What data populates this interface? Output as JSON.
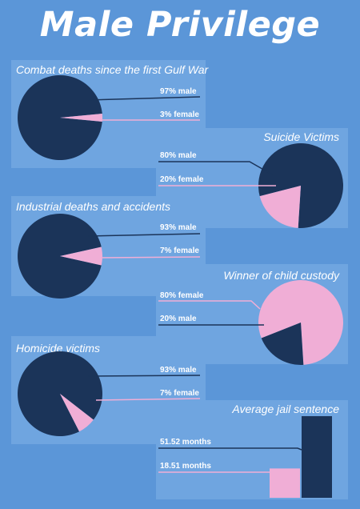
{
  "title": "Male Privilege",
  "colors": {
    "male": "#1b3459",
    "female": "#f0aed6",
    "background": "#5b96d8",
    "panel": "#6fa5e0"
  },
  "chart_data": [
    {
      "type": "pie",
      "title": "Combat deaths since the first Gulf War",
      "slices": [
        {
          "name": "male",
          "value": 97,
          "label": "97% male"
        },
        {
          "name": "female",
          "value": 3,
          "label": "3% female"
        }
      ]
    },
    {
      "type": "pie",
      "title": "Suicide Victims",
      "slices": [
        {
          "name": "male",
          "value": 80,
          "label": "80% male"
        },
        {
          "name": "female",
          "value": 20,
          "label": "20% female"
        }
      ]
    },
    {
      "type": "pie",
      "title": "Industrial deaths and accidents",
      "slices": [
        {
          "name": "male",
          "value": 93,
          "label": "93% male"
        },
        {
          "name": "female",
          "value": 7,
          "label": "7% female"
        }
      ]
    },
    {
      "type": "pie",
      "title": "Winner of child custody",
      "slices": [
        {
          "name": "female",
          "value": 80,
          "label": "80% female"
        },
        {
          "name": "male",
          "value": 20,
          "label": "20% male"
        }
      ]
    },
    {
      "type": "pie",
      "title": "Homicide victims",
      "slices": [
        {
          "name": "male",
          "value": 93,
          "label": "93% male"
        },
        {
          "name": "female",
          "value": 7,
          "label": "7% female"
        }
      ]
    },
    {
      "type": "bar",
      "title": "Average jail sentence",
      "unit": "months",
      "bars": [
        {
          "name": "female",
          "value": 18.51,
          "label": "18.51 months"
        },
        {
          "name": "male",
          "value": 51.52,
          "label": "51.52 months"
        }
      ]
    }
  ]
}
